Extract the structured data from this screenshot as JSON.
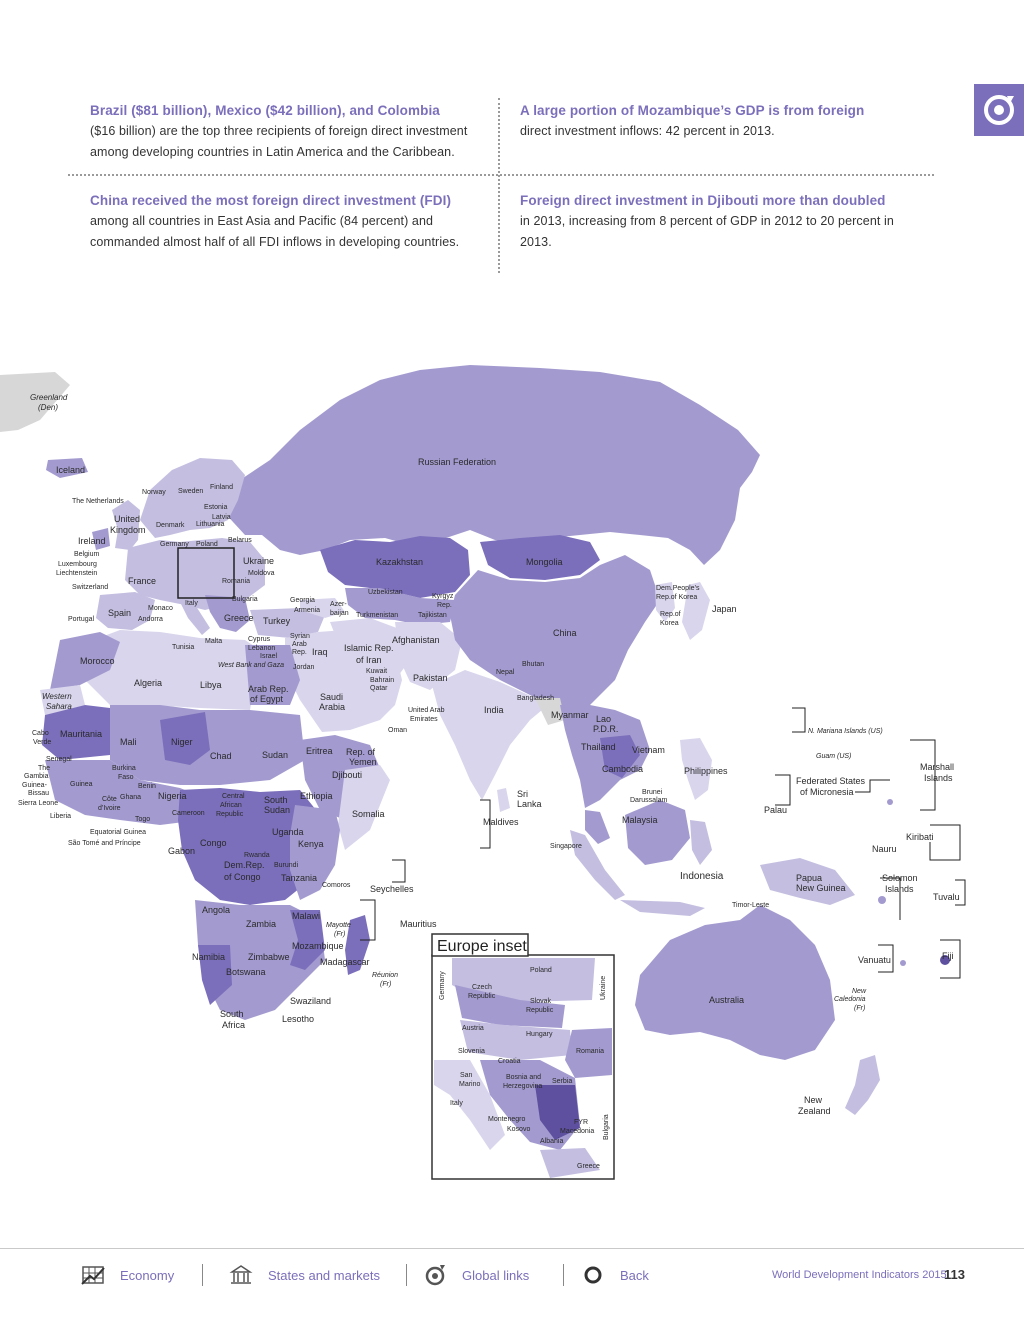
{
  "callouts": [
    {
      "lead": "Brazil ($81 billion), Mexico ($42 billion), and Colombia",
      "lines": [
        "($16 billion) are the top three recipients of foreign direct investment",
        "among developing countries in Latin America and the Caribbean."
      ]
    },
    {
      "lead": "A large portion of Mozambique’s GDP is from foreign",
      "lines": [
        "direct investment inflows: 42 percent in 2013."
      ]
    },
    {
      "lead": "China received the most foreign direct investment (FDI)",
      "lines": [
        "among all countries in East Asia and Pacific (84 percent) and",
        "commanded almost half of all FDI inflows in developing countries."
      ]
    },
    {
      "lead": "Foreign direct investment in Djibouti more than doubled",
      "lines": [
        "in 2013, increasing from 8 percent of GDP in 2012 to 20 percent in",
        "2013."
      ]
    }
  ],
  "section_icon": "global-links-icon",
  "map": {
    "colors": {
      "light": "#d9d5ec",
      "light2": "#c4bee0",
      "mid": "#a39bcf",
      "dark": "#7b6fbb",
      "darker": "#5e509f",
      "nodata": "#d7d7d7"
    },
    "labels": {
      "greenland": "Greenland",
      "greenland_den": "(Den)",
      "iceland": "Iceland",
      "russia": "Russian Federation",
      "norway": "Norway",
      "sweden": "Sweden",
      "finland": "Finland",
      "estonia": "Estonia",
      "latvia": "Latvia",
      "lithuania": "Lithuania",
      "netherlands": "The Netherlands",
      "uk1": "United",
      "uk2": "Kingdom",
      "denmark": "Denmark",
      "ireland": "Ireland",
      "germany": "Germany",
      "poland": "Poland",
      "belarus": "Belarus",
      "belgium": "Belgium",
      "luxembourg": "Luxembourg",
      "liechtenstein": "Liechtenstein",
      "switzerland": "Switzerland",
      "france": "France",
      "ukraine": "Ukraine",
      "moldova": "Moldova",
      "romania": "Romania",
      "bulgaria": "Bulgaria",
      "georgia": "Georgia",
      "armenia": "Armenia",
      "azer1": "Azer-",
      "azer2": "baijan",
      "kazakhstan": "Kazakhstan",
      "mongolia": "Mongolia",
      "uzbekistan": "Uzbekistan",
      "kyrgyz1": "Kyrgyz",
      "kyrgyz2": "Rep.",
      "turkmenistan": "Turkmenistan",
      "tajikistan": "Tajikistan",
      "dprk1": "Dem.People’s",
      "dprk2": "Rep.of Korea",
      "korea1": "Rep.of",
      "korea2": "Korea",
      "japan": "Japan",
      "china": "China",
      "portugal": "Portugal",
      "spain": "Spain",
      "monaco": "Monaco",
      "andorra": "Andorra",
      "italy": "Italy",
      "greece": "Greece",
      "turkey": "Turkey",
      "malta": "Malta",
      "tunisia": "Tunisia",
      "cyprus": "Cyprus",
      "lebanon": "Lebanon",
      "israel": "Israel",
      "westbank": "West Bank and Gaza",
      "syria1": "Syrian",
      "syria2": "Arab",
      "syria3": "Rep.",
      "iraq": "Iraq",
      "jordan": "Jordan",
      "iran1": "Islamic Rep.",
      "iran2": "of Iran",
      "kuwait": "Kuwait",
      "bahrain": "Bahrain",
      "qatar": "Qatar",
      "afghanistan": "Afghanistan",
      "pakistan": "Pakistan",
      "nepal": "Nepal",
      "bhutan": "Bhutan",
      "bangladesh": "Bangladesh",
      "india": "India",
      "morocco": "Morocco",
      "algeria": "Algeria",
      "libya": "Libya",
      "egypt1": "Arab Rep.",
      "egypt2": "of Egypt",
      "saudi1": "Saudi",
      "saudi2": "Arabia",
      "uae1": "United Arab",
      "uae2": "Emirates",
      "oman": "Oman",
      "myanmar": "Myanmar",
      "lao1": "Lao",
      "lao2": "P.D.R.",
      "thailand": "Thailand",
      "vietnam": "Vietnam",
      "cambodia": "Cambodia",
      "philippines": "Philippines",
      "wsahara1": "Western",
      "wsahara2": "Sahara",
      "mauritania": "Mauritania",
      "mali": "Mali",
      "niger": "Niger",
      "chad": "Chad",
      "sudan": "Sudan",
      "eritrea": "Eritrea",
      "yemen1": "Rep. of",
      "yemen2": "Yemen",
      "djibouti": "Djibouti",
      "cabo1": "Cabo",
      "cabo2": "Verde",
      "senegal": "Senegal",
      "gambia1": "The",
      "gambia2": "Gambia",
      "gbissau1": "Guinea-",
      "gbissau2": "Bissau",
      "guinea": "Guinea",
      "sierraleone": "Sierra Leone",
      "liberia": "Liberia",
      "burkina1": "Burkina",
      "burkina2": "Faso",
      "benin": "Benin",
      "ghana": "Ghana",
      "cotedivoire1": "Côte",
      "cotedivoire2": "d’Ivoire",
      "togo": "Togo",
      "nigeria": "Nigeria",
      "car1": "Central",
      "car2": "African",
      "car3": "Republic",
      "ssudan1": "South",
      "ssudan2": "Sudan",
      "ethiopia": "Ethiopia",
      "somalia": "Somalia",
      "cameroon": "Cameroon",
      "eqguinea": "Equatorial Guinea",
      "saotome": "São Tomé and Príncipe",
      "gabon": "Gabon",
      "congo": "Congo",
      "uganda": "Uganda",
      "kenya": "Kenya",
      "rwanda": "Rwanda",
      "burundi": "Burundi",
      "drc1": "Dem.Rep.",
      "drc2": "of Congo",
      "tanzania": "Tanzania",
      "comoros": "Comoros",
      "seychelles": "Seychelles",
      "srilanka1": "Sri",
      "srilanka2": "Lanka",
      "maldives": "Maldives",
      "brunei1": "Brunei",
      "brunei2": "Darussalam",
      "malaysia": "Malaysia",
      "singapore": "Singapore",
      "nmariana": "N. Mariana Islands (US)",
      "guam": "Guam (US)",
      "marshall1": "Marshall",
      "marshall2": "Islands",
      "micronesia1": "Federated States",
      "micronesia2": "of Micronesia",
      "palau": "Palau",
      "kiribati": "Kiribati",
      "nauru": "Nauru",
      "indonesia": "Indonesia",
      "png1": "Papua",
      "png2": "New Guinea",
      "solomon1": "Solomon",
      "solomon2": "Islands",
      "tuvalu": "Tuvalu",
      "timorleste": "Timor-Leste",
      "angola": "Angola",
      "zambia": "Zambia",
      "malawi": "Malawi",
      "mayotte1": "Mayotte",
      "mayotte2": "(Fr)",
      "mauritius": "Mauritius",
      "namibia": "Namibia",
      "zimbabwe": "Zimbabwe",
      "mozambique": "Mozambique",
      "madagascar": "Madagascar",
      "botswana": "Botswana",
      "reunion1": "Réunion",
      "reunion2": "(Fr)",
      "swaziland": "Swaziland",
      "safrica1": "South",
      "safrica2": "Africa",
      "lesotho": "Lesotho",
      "vanuatu": "Vanuatu",
      "fiji": "Fiji",
      "newcal1": "New",
      "newcal2": "Caledonia",
      "newcal3": "(Fr)",
      "australia": "Australia",
      "nz1": "New",
      "nz2": "Zealand"
    },
    "inset": {
      "title": "Europe inset",
      "labels": {
        "poland": "Poland",
        "germany": "Germany",
        "ukraine": "Ukraine",
        "czech1": "Czech",
        "czech2": "Republic",
        "slovak1": "Slovak",
        "slovak2": "Republic",
        "austria": "Austria",
        "hungary": "Hungary",
        "slovenia": "Slovenia",
        "romania": "Romania",
        "croatia": "Croatia",
        "sanmarino1": "San",
        "sanmarino2": "Marino",
        "bosnia1": "Bosnia and",
        "bosnia2": "Herzegovina",
        "serbia": "Serbia",
        "italy": "Italy",
        "bulgaria": "Bulgaria",
        "montenegro": "Montenegro",
        "kosovo": "Kosovo",
        "fyr1": "FYR",
        "fyr2": "Macedonia",
        "albania": "Albania",
        "greece": "Greece"
      }
    }
  },
  "footer": {
    "nav": [
      {
        "label": "Economy",
        "icon": "economy-icon"
      },
      {
        "label": "States and markets",
        "icon": "states-and-markets-icon"
      },
      {
        "label": "Global links",
        "icon": "global-links-icon"
      },
      {
        "label": "Back",
        "icon": "back-icon"
      }
    ],
    "publication": "World Development Indicators 2015",
    "page_number": "113"
  }
}
